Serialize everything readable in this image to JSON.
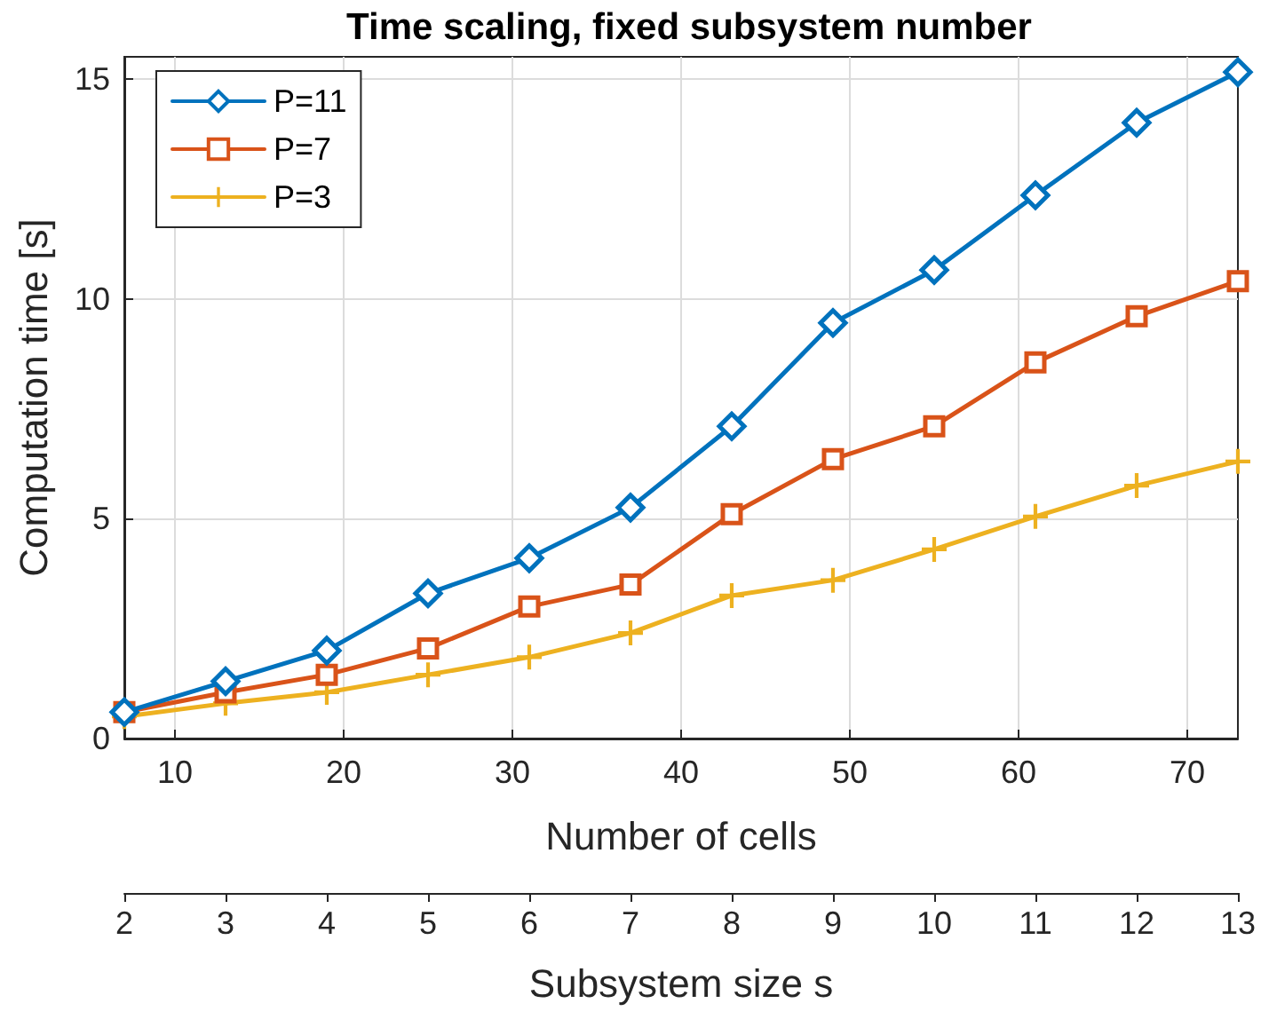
{
  "chart_data": {
    "type": "line",
    "title": "Time scaling, fixed subsystem number",
    "xlabel": "Number of cells",
    "ylabel": "Computation time [s]",
    "x2label": "Subsystem size s",
    "x": [
      7,
      13,
      19,
      25,
      31,
      37,
      43,
      49,
      55,
      61,
      67,
      73
    ],
    "series": [
      {
        "name": "P=11",
        "color": "#0072bd",
        "marker": "diamond",
        "values": [
          0.6,
          1.3,
          2.0,
          3.3,
          4.1,
          5.25,
          7.1,
          9.45,
          10.65,
          12.35,
          14.0,
          15.15
        ]
      },
      {
        "name": "P=7",
        "color": "#d95319",
        "marker": "square",
        "values": [
          0.6,
          1.05,
          1.45,
          2.05,
          3.0,
          3.5,
          5.1,
          6.35,
          7.1,
          8.55,
          9.6,
          10.4
        ]
      },
      {
        "name": "P=3",
        "color": "#edb120",
        "marker": "cross",
        "values": [
          0.5,
          0.8,
          1.05,
          1.45,
          1.85,
          2.4,
          3.25,
          3.6,
          4.3,
          5.05,
          5.75,
          6.3
        ]
      }
    ],
    "xlim": [
      7,
      73
    ],
    "xticks": [
      10,
      20,
      30,
      40,
      50,
      60,
      70
    ],
    "ylim": [
      0,
      15.5
    ],
    "yticks": [
      0,
      5,
      10,
      15
    ],
    "x2lim": [
      2,
      13
    ],
    "x2ticks": [
      2,
      3,
      4,
      5,
      6,
      7,
      8,
      9,
      10,
      11,
      12,
      13
    ],
    "grid": true,
    "legend": "top left",
    "line_style": "solid"
  }
}
